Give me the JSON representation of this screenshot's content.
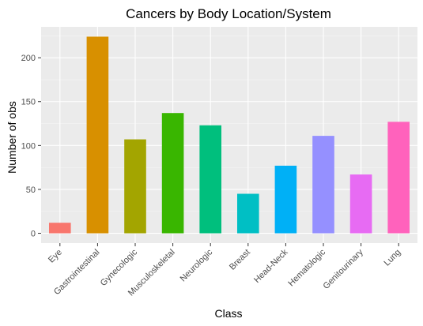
{
  "chart_data": {
    "type": "bar",
    "title": "Cancers by Body Location/System",
    "xlabel": "Class",
    "ylabel": "Number of obs",
    "categories": [
      "Eye",
      "Gastrointestinal",
      "Gynecologic",
      "Musculoskeletal",
      "Neurologic",
      "Breast",
      "Head-Neck",
      "Hematologic",
      "Genitourinary",
      "Lung"
    ],
    "values": [
      12,
      224,
      107,
      137,
      123,
      45,
      77,
      111,
      67,
      127
    ],
    "colors": [
      "#F8766D",
      "#D89000",
      "#A3A500",
      "#39B600",
      "#00BF7D",
      "#00BFC4",
      "#00B0F6",
      "#9590FF",
      "#E76BF3",
      "#FF62BC"
    ],
    "yticks": [
      0,
      50,
      100,
      150,
      200
    ],
    "ylim": [
      -11.2,
      235.2
    ],
    "grid": true,
    "legend": "none",
    "panel_background": "#EBEBEB"
  }
}
